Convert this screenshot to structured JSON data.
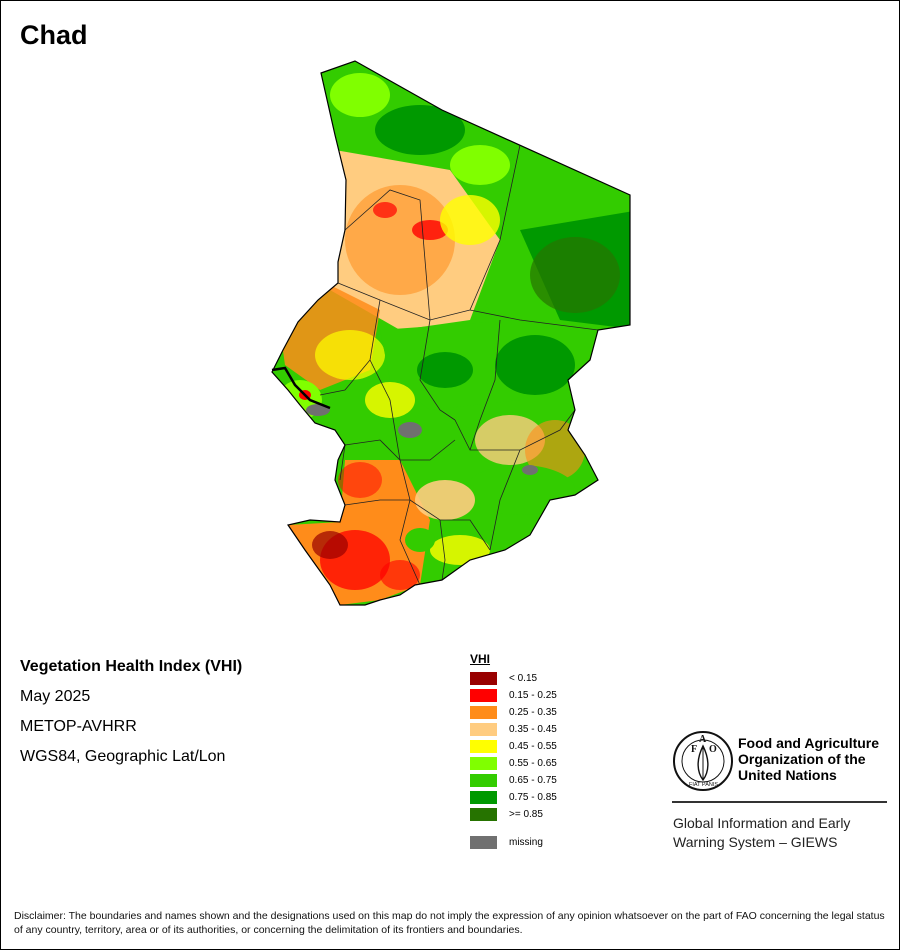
{
  "header": {
    "country": "Chad"
  },
  "info": {
    "index_name": "Vegetation Health Index (VHI)",
    "period": "May 2025",
    "sensor": "METOP-AVHRR",
    "projection": "WGS84, Geographic Lat/Lon"
  },
  "legend": {
    "title": "VHI",
    "items": [
      {
        "label": "< 0.15",
        "color": "#990000"
      },
      {
        "label": "0.15 - 0.25",
        "color": "#ff0000"
      },
      {
        "label": "0.25 - 0.35",
        "color": "#ff8c1a"
      },
      {
        "label": "0.35 - 0.45",
        "color": "#ffcc80"
      },
      {
        "label": "0.45 - 0.55",
        "color": "#ffff00"
      },
      {
        "label": "0.55 - 0.65",
        "color": "#80ff00"
      },
      {
        "label": "0.65 - 0.75",
        "color": "#33cc00"
      },
      {
        "label": "0.75 - 0.85",
        "color": "#009900"
      },
      {
        "label": ">= 0.85",
        "color": "#267300"
      }
    ],
    "missing": {
      "label": "missing",
      "color": "#707070"
    }
  },
  "organization": {
    "line1": "Food and Agriculture",
    "line2": "Organization of the",
    "line3": "United Nations",
    "logo_letters": [
      "F",
      "A",
      "O"
    ],
    "logo_motto": "FIAT PANIS",
    "system_line1": "Global Information and Early",
    "system_line2": "Warning System – GIEWS"
  },
  "disclaimer": "Disclaimer: The boundaries and names shown and the designations used on this map do not imply the expression of any opinion whatsoever on the part of FAO concerning the legal status of any country, territory, area or of its authorities, or concerning the delimitation of its frontiers and boundaries."
}
